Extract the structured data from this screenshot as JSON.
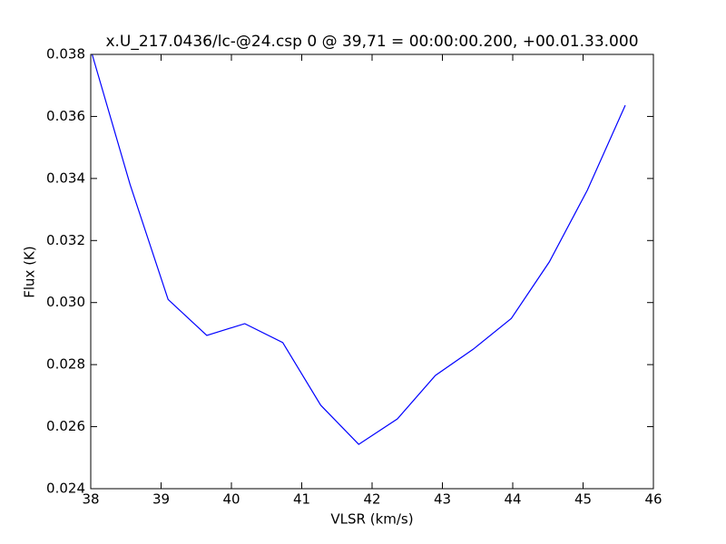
{
  "chart_data": {
    "type": "line",
    "title": "x.U_217.0436/lc-@24.csp 0 @ 39,71 = 00:00:00.200, +00.01.33.000",
    "x_label": "VLSR (km/s)",
    "y_label": "Flux (K)",
    "x": [
      38.02,
      38.56,
      39.1,
      39.65,
      40.19,
      40.73,
      41.27,
      41.81,
      42.36,
      42.9,
      43.44,
      43.98,
      44.52,
      45.06,
      45.6
    ],
    "values": [
      0.038,
      0.0338,
      0.0301,
      0.02894,
      0.02932,
      0.02871,
      0.02669,
      0.02543,
      0.02625,
      0.02765,
      0.0285,
      0.02949,
      0.03131,
      0.03362,
      0.03636
    ],
    "color": "#0000ff",
    "xlim": [
      38,
      46
    ],
    "xticks": [
      38,
      39,
      40,
      41,
      42,
      43,
      44,
      45,
      46
    ],
    "ylim": [
      0.024,
      0.038
    ],
    "yticks": [
      0.024,
      0.026,
      0.028,
      {
        "value": 0.03,
        "label": "0.030"
      },
      0.032,
      0.034,
      0.036,
      0.038
    ],
    "grid": false
  }
}
